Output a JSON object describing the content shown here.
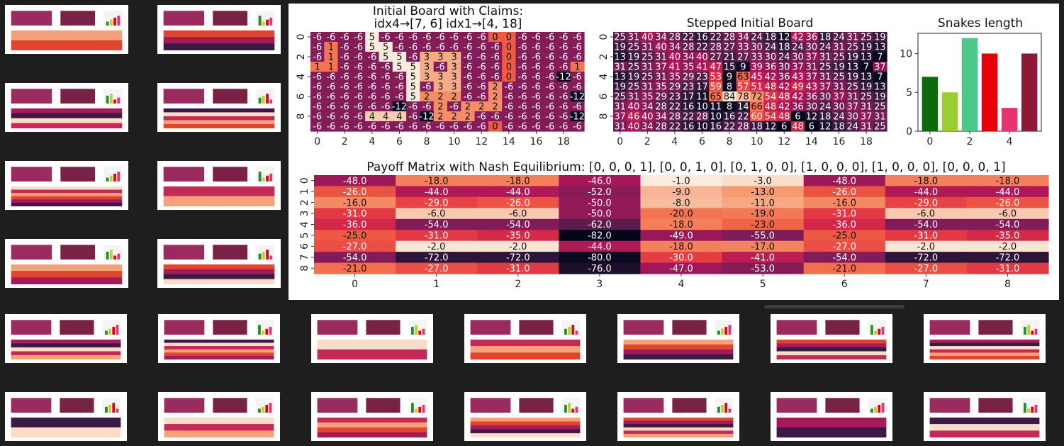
{
  "initial_board": {
    "title_line1": "Initial Board with Claims:",
    "title_line2": "idx4→[7, 6] idx1→[4, 18]",
    "x_ticks": [
      "0",
      "2",
      "4",
      "6",
      "8",
      "10",
      "12",
      "14",
      "16",
      "18"
    ],
    "y_ticks": [
      "0",
      "2",
      "4",
      "6",
      "8"
    ],
    "rows": [
      [
        "-6",
        "-6",
        "-6",
        "-6",
        "5",
        "-6",
        "-6",
        "-6",
        "-6",
        "-6",
        "-6",
        "-6",
        "-6",
        "0",
        "0",
        "-6",
        "-6",
        "-6",
        "-6",
        "-6"
      ],
      [
        "-6",
        "1",
        "-6",
        "-6",
        "5",
        "5",
        "-6",
        "-6",
        "-6",
        "-6",
        "-6",
        "-6",
        "-6",
        "-6",
        "0",
        "-6",
        "-6",
        "-6",
        "-6",
        "-6"
      ],
      [
        "-6",
        "1",
        "-6",
        "-6",
        "-6",
        "5",
        "5",
        "-6",
        "3",
        "3",
        "3",
        "-6",
        "-6",
        "-6",
        "0",
        "-6",
        "-6",
        "-6",
        "-6",
        "-6"
      ],
      [
        "1",
        "1",
        "-6",
        "-6",
        "-6",
        "-6",
        "5",
        "5",
        "3",
        "-6",
        "3",
        "-6",
        "-6",
        "-6",
        "0",
        "-6",
        "-6",
        "-6",
        "-6",
        "1"
      ],
      [
        "-6",
        "-6",
        "-6",
        "-6",
        "-6",
        "-6",
        "-6",
        "5",
        "3",
        "3",
        "3",
        "-6",
        "-6",
        "-6",
        "0",
        "-6",
        "-6",
        "-6",
        "-12",
        "-6"
      ],
      [
        "-6",
        "-6",
        "-6",
        "-6",
        "-6",
        "-6",
        "-6",
        "5",
        "-6",
        "3",
        "3",
        "-6",
        "-6",
        "2",
        "-6",
        "-6",
        "-6",
        "-6",
        "-6",
        "-6"
      ],
      [
        "-6",
        "-6",
        "-6",
        "-6",
        "-6",
        "-6",
        "-6",
        "5",
        "2",
        "2",
        "2",
        "-6",
        "-6",
        "2",
        "-6",
        "-6",
        "-6",
        "-6",
        "-6",
        "-12"
      ],
      [
        "-6",
        "-6",
        "-6",
        "-6",
        "-6",
        "-6",
        "-12",
        "-6",
        "-6",
        "2",
        "-6",
        "2",
        "2",
        "2",
        "-6",
        "-6",
        "-6",
        "-6",
        "-6",
        "-6"
      ],
      [
        "-6",
        "-6",
        "-6",
        "-6",
        "4",
        "4",
        "4",
        "-6",
        "-12",
        "2",
        "2",
        "2",
        "-6",
        "-6",
        "-6",
        "-6",
        "-6",
        "-6",
        "-6",
        "-12"
      ],
      [
        "-6",
        "-6",
        "-6",
        "-6",
        "-6",
        "-6",
        "-6",
        "-6",
        "-6",
        "-6",
        "-6",
        "-6",
        "-6",
        "0",
        "-6",
        "-6",
        "-6",
        "-6",
        "-6",
        "-6"
      ]
    ],
    "color_hint": "#7b1f5b / #f9ddc8"
  },
  "stepped_board": {
    "title": "Stepped Initial Board",
    "x_ticks": [
      "0",
      "2",
      "4",
      "6",
      "8",
      "10",
      "12",
      "14",
      "16",
      "18"
    ],
    "y_ticks": [
      "0",
      "2",
      "4",
      "6",
      "8"
    ],
    "rows": [
      [
        "25",
        "31",
        "40",
        "34",
        "28",
        "22",
        "16",
        "22",
        "28",
        "34",
        "24",
        "18",
        "12",
        "42",
        "36",
        "18",
        "24",
        "31",
        "25",
        "19"
      ],
      [
        "19",
        "25",
        "31",
        "40",
        "34",
        "28",
        "22",
        "28",
        "27",
        "33",
        "30",
        "24",
        "18",
        "24",
        "30",
        "24",
        "31",
        "25",
        "19",
        "13"
      ],
      [
        "13",
        "19",
        "25",
        "31",
        "40",
        "34",
        "40",
        "27",
        "21",
        "27",
        "33",
        "30",
        "24",
        "30",
        "37",
        "31",
        "25",
        "19",
        "13",
        "7"
      ],
      [
        "31",
        "25",
        "31",
        "37",
        "41",
        "35",
        "41",
        "47",
        "15",
        "9",
        "39",
        "36",
        "30",
        "37",
        "31",
        "25",
        "19",
        "13",
        "7",
        "37"
      ],
      [
        "13",
        "19",
        "25",
        "31",
        "35",
        "29",
        "23",
        "53",
        "9",
        "63",
        "45",
        "42",
        "36",
        "43",
        "37",
        "31",
        "25",
        "19",
        "13",
        "7"
      ],
      [
        "19",
        "25",
        "31",
        "35",
        "29",
        "23",
        "17",
        "59",
        "8",
        "57",
        "51",
        "48",
        "42",
        "49",
        "43",
        "37",
        "31",
        "25",
        "19",
        "13"
      ],
      [
        "25",
        "31",
        "35",
        "29",
        "23",
        "17",
        "11",
        "65",
        "84",
        "78",
        "72",
        "54",
        "48",
        "42",
        "36",
        "30",
        "37",
        "31",
        "25",
        "19"
      ],
      [
        "31",
        "40",
        "34",
        "28",
        "22",
        "16",
        "10",
        "11",
        "8",
        "14",
        "66",
        "48",
        "42",
        "36",
        "30",
        "24",
        "30",
        "37",
        "31",
        "25"
      ],
      [
        "37",
        "46",
        "40",
        "34",
        "28",
        "22",
        "28",
        "10",
        "16",
        "22",
        "60",
        "54",
        "48",
        "6",
        "12",
        "18",
        "24",
        "30",
        "37",
        "31"
      ],
      [
        "31",
        "40",
        "34",
        "28",
        "22",
        "16",
        "10",
        "16",
        "22",
        "28",
        "18",
        "12",
        "6",
        "48",
        "6",
        "12",
        "18",
        "24",
        "31",
        "25"
      ]
    ]
  },
  "snakes_length": {
    "title": "Snakes length",
    "x_ticks": [
      "0",
      "2",
      "4"
    ],
    "y_ticks": [
      "0",
      "5",
      "10"
    ],
    "ylim": [
      0,
      12.6
    ],
    "values": [
      7,
      5,
      12,
      10,
      3,
      10
    ],
    "colors": [
      "#0b6b0b",
      "#9acd32",
      "#4cc98a",
      "#e8000b",
      "#e8336e",
      "#8b1a35"
    ]
  },
  "payoff_matrix": {
    "title": "Payoff Matrix with Nash Equilibrium: [0, 0, 0, 1], [0, 0, 1, 0], [0, 1, 0, 0], [1, 0, 0, 0], [1, 0, 0, 0], [0, 0, 0, 1]",
    "x_ticks": [
      "0",
      "1",
      "2",
      "3",
      "4",
      "5",
      "6",
      "7",
      "8"
    ],
    "y_ticks": [
      "0",
      "1",
      "2",
      "3",
      "4",
      "5",
      "6",
      "7",
      "8"
    ],
    "rows": [
      [
        "-48.0",
        "-18.0",
        "-18.0",
        "-46.0",
        "-1.0",
        "-3.0",
        "-48.0",
        "-18.0",
        "-18.0"
      ],
      [
        "-26.0",
        "-44.0",
        "-44.0",
        "-52.0",
        "-9.0",
        "-13.0",
        "-26.0",
        "-44.0",
        "-44.0"
      ],
      [
        "-16.0",
        "-29.0",
        "-26.0",
        "-50.0",
        "-8.0",
        "-11.0",
        "-16.0",
        "-29.0",
        "-26.0"
      ],
      [
        "-31.0",
        "-6.0",
        "-6.0",
        "-50.0",
        "-20.0",
        "-19.0",
        "-31.0",
        "-6.0",
        "-6.0"
      ],
      [
        "-36.0",
        "-54.0",
        "-54.0",
        "-62.0",
        "-18.0",
        "-23.0",
        "-36.0",
        "-54.0",
        "-54.0"
      ],
      [
        "-25.0",
        "-31.0",
        "-35.0",
        "-82.0",
        "-49.0",
        "-55.0",
        "-25.0",
        "-31.0",
        "-35.0"
      ],
      [
        "-27.0",
        "-2.0",
        "-2.0",
        "-44.0",
        "-18.0",
        "-17.0",
        "-27.0",
        "-2.0",
        "-2.0"
      ],
      [
        "-54.0",
        "-72.0",
        "-72.0",
        "-80.0",
        "-30.0",
        "-41.0",
        "-54.0",
        "-72.0",
        "-72.0"
      ],
      [
        "-21.0",
        "-27.0",
        "-31.0",
        "-76.0",
        "-47.0",
        "-53.0",
        "-21.0",
        "-27.0",
        "-31.0"
      ]
    ]
  },
  "thumbnails": {
    "count": 20
  }
}
